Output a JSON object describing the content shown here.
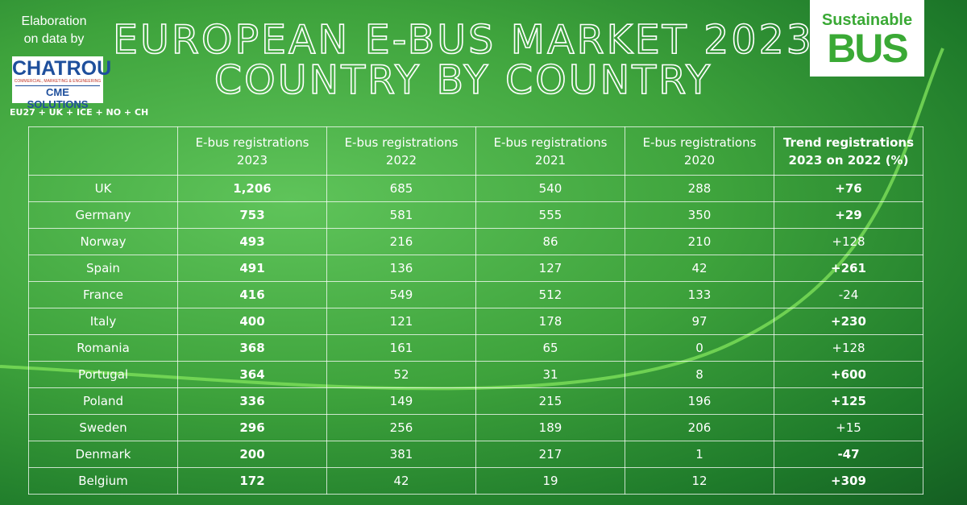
{
  "header": {
    "credit": [
      "Elaboration",
      "on data by"
    ],
    "source_logo": {
      "name": "CHATROU",
      "tagline": "COMMERCIAL, MARKETING & ENGINEERING",
      "sub": "CME SOLUTIONS"
    },
    "scope": "EU27 + UK + ICE + NO + CH",
    "title": [
      "EUROPEAN E-BUS MARKET 2023",
      "COUNTRY BY COUNTRY"
    ],
    "brand": [
      "Sustainable",
      "BUS"
    ]
  },
  "table": {
    "columns": [
      "",
      "E-bus registrations 2023",
      "E-bus registrations 2022",
      "E-bus registrations 2021",
      "E-bus registrations 2020",
      "Trend registrations 2023 on 2022 (%)"
    ],
    "rows": [
      [
        "UK",
        "1,206",
        "685",
        "540",
        "288",
        "+76"
      ],
      [
        "Germany",
        "753",
        "581",
        "555",
        "350",
        "+29"
      ],
      [
        "Norway",
        "493",
        "216",
        "86",
        "210",
        "+128"
      ],
      [
        "Spain",
        "491",
        "136",
        "127",
        "42",
        "+261"
      ],
      [
        "France",
        "416",
        "549",
        "512",
        "133",
        "-24"
      ],
      [
        "Italy",
        "400",
        "121",
        "178",
        "97",
        "+230"
      ],
      [
        "Romania",
        "368",
        "161",
        "65",
        "0",
        "+128"
      ],
      [
        "Portugal",
        "364",
        "52",
        "31",
        "8",
        "+600"
      ],
      [
        "Poland",
        "336",
        "149",
        "215",
        "196",
        "+125"
      ],
      [
        "Sweden",
        "296",
        "256",
        "189",
        "206",
        "+15"
      ],
      [
        "Denmark",
        "200",
        "381",
        "217",
        "1",
        "-47"
      ],
      [
        "Belgium",
        "172",
        "42",
        "19",
        "12",
        "+309"
      ]
    ]
  }
}
